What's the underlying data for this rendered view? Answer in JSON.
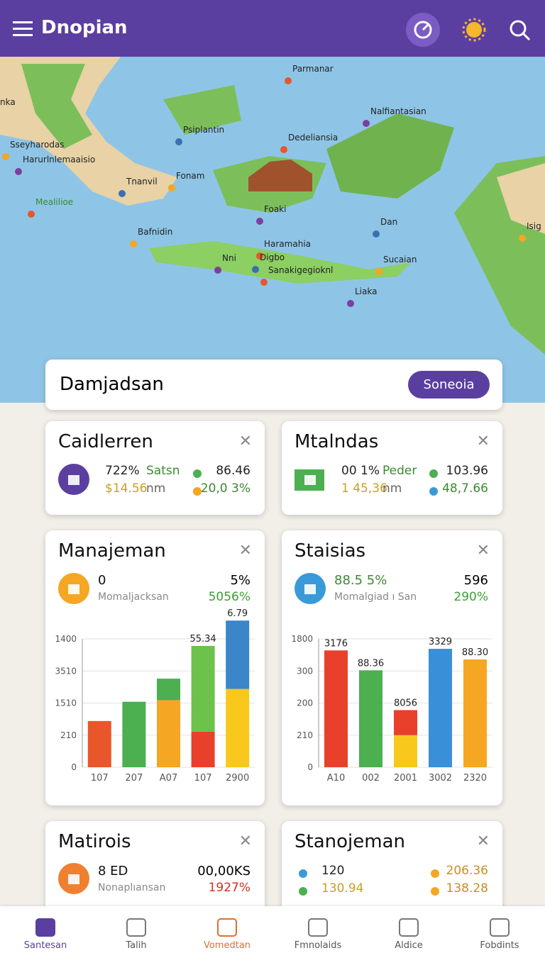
{
  "header": {
    "title": "Dnopian"
  },
  "map": {
    "labels": [
      "Parmanar",
      "Nalfiantasian",
      "Psiplantin",
      "Sseyharodas",
      "Dedeliansia",
      "Harurlnlemaaisio",
      "Tnanvil",
      "Fonam",
      "Mealilioe",
      "Foaki",
      "Dan",
      "Bafnidin",
      "Haramahia",
      "Nni",
      "Digbo",
      "Sucaian",
      "Sanakigegioknl",
      "Liaka",
      "nka",
      "Isig"
    ]
  },
  "search": {
    "text": "Damjadsan",
    "button": "Soneoia"
  },
  "cards": [
    {
      "title": "Caidlerren",
      "rows": [
        {
          "a": "722%",
          "b": "Satsn",
          "dot": "#4caf50",
          "c": "86.46"
        },
        {
          "a": "$14.56",
          "b": "nm",
          "dot": "#f5a623",
          "c": "20,0 3%"
        }
      ]
    },
    {
      "title": "Mtalndas",
      "rows": [
        {
          "a": "00 1%",
          "b": "Peder",
          "dot": "#4caf50",
          "c": "103.96"
        },
        {
          "a": "1 45,36",
          "b": "nm",
          "dot": "#3a9ad9",
          "c": "48,7.66"
        }
      ]
    },
    {
      "title": "Manajeman",
      "value": "0",
      "sub": "Momaljacksan",
      "right": "5%",
      "right2": "5056%",
      "chart": {
        "type": "bar",
        "ylim": [
          0,
          4
        ],
        "yticks": [
          {
            "value": 0,
            "label": "0"
          },
          {
            "value": 1,
            "label": "210"
          },
          {
            "value": 2,
            "label": "1510"
          },
          {
            "value": 3,
            "label": "3510"
          },
          {
            "value": 4,
            "label": "1400"
          }
        ],
        "categories": [
          "107",
          "207",
          "A07",
          "107",
          "2900"
        ],
        "bars": [
          {
            "segments": [
              {
                "value": 1.44,
                "color": "#e8562a"
              }
            ]
          },
          {
            "segments": [
              {
                "value": 2.04,
                "color": "#4caf50"
              }
            ]
          },
          {
            "segments": [
              {
                "value": 2.09,
                "color": "#f5a623"
              },
              {
                "value": 0.67,
                "color": "#4caf50"
              }
            ]
          },
          {
            "segments": [
              {
                "value": 1.11,
                "color": "#e8402a"
              },
              {
                "value": 2.67,
                "color": "#6cc24a"
              }
            ]
          },
          {
            "segments": [
              {
                "value": 2.44,
                "color": "#f8c91c"
              },
              {
                "value": 2.13,
                "color": "#3a86c8"
              }
            ]
          }
        ],
        "annotations": [
          {
            "text": "55.34",
            "bar": 3
          },
          {
            "text": "6.79",
            "bar": 4
          }
        ]
      }
    },
    {
      "title": "Staisias",
      "value": "88.5 5%",
      "sub": "Momalgiad ı San",
      "right": "596",
      "right2": "290%",
      "chart": {
        "type": "bar",
        "ylim": [
          0,
          4
        ],
        "yticks": [
          {
            "value": 0,
            "label": "0"
          },
          {
            "value": 1,
            "label": "210"
          },
          {
            "value": 2,
            "label": "200"
          },
          {
            "value": 3,
            "label": "300"
          },
          {
            "value": 4,
            "label": "1800"
          }
        ],
        "categories": [
          "A10",
          "002",
          "2001",
          "3002",
          "2320"
        ],
        "bars": [
          {
            "segments": [
              {
                "value": 3.64,
                "color": "#e8402a"
              }
            ]
          },
          {
            "segments": [
              {
                "value": 3.02,
                "color": "#4caf50"
              }
            ]
          },
          {
            "segments": [
              {
                "value": 1.0,
                "color": "#f8c91c"
              },
              {
                "value": 0.78,
                "color": "#e8402a"
              }
            ]
          },
          {
            "segments": [
              {
                "value": 3.69,
                "color": "#3a8fd9"
              }
            ]
          },
          {
            "segments": [
              {
                "value": 3.36,
                "color": "#f5a623"
              }
            ]
          }
        ],
        "annotations": [
          {
            "text": "3176",
            "bar": 0
          },
          {
            "text": "88.36",
            "bar": 1
          },
          {
            "text": "8056",
            "bar": 2
          },
          {
            "text": "3329",
            "bar": 3
          },
          {
            "text": "88.30",
            "bar": 4
          }
        ]
      }
    },
    {
      "title": "Matirois",
      "value": "8 ED",
      "sub": "Nonaplıansan",
      "right": "00,00KS",
      "right2": "1927%"
    },
    {
      "title": "Stanojeman",
      "rows": [
        {
          "a": "120",
          "dot": "#3a9ad9",
          "c": "206.36",
          "dot2": "#f5a623"
        },
        {
          "a": "130.94",
          "dot": "#4caf50",
          "c": "138.28",
          "dot2": "#f5a623"
        }
      ]
    }
  ],
  "nav": [
    "Santesan",
    "Talih",
    "Vomedtan",
    "Fmnolaids",
    "Aldice",
    "Fobdints"
  ]
}
